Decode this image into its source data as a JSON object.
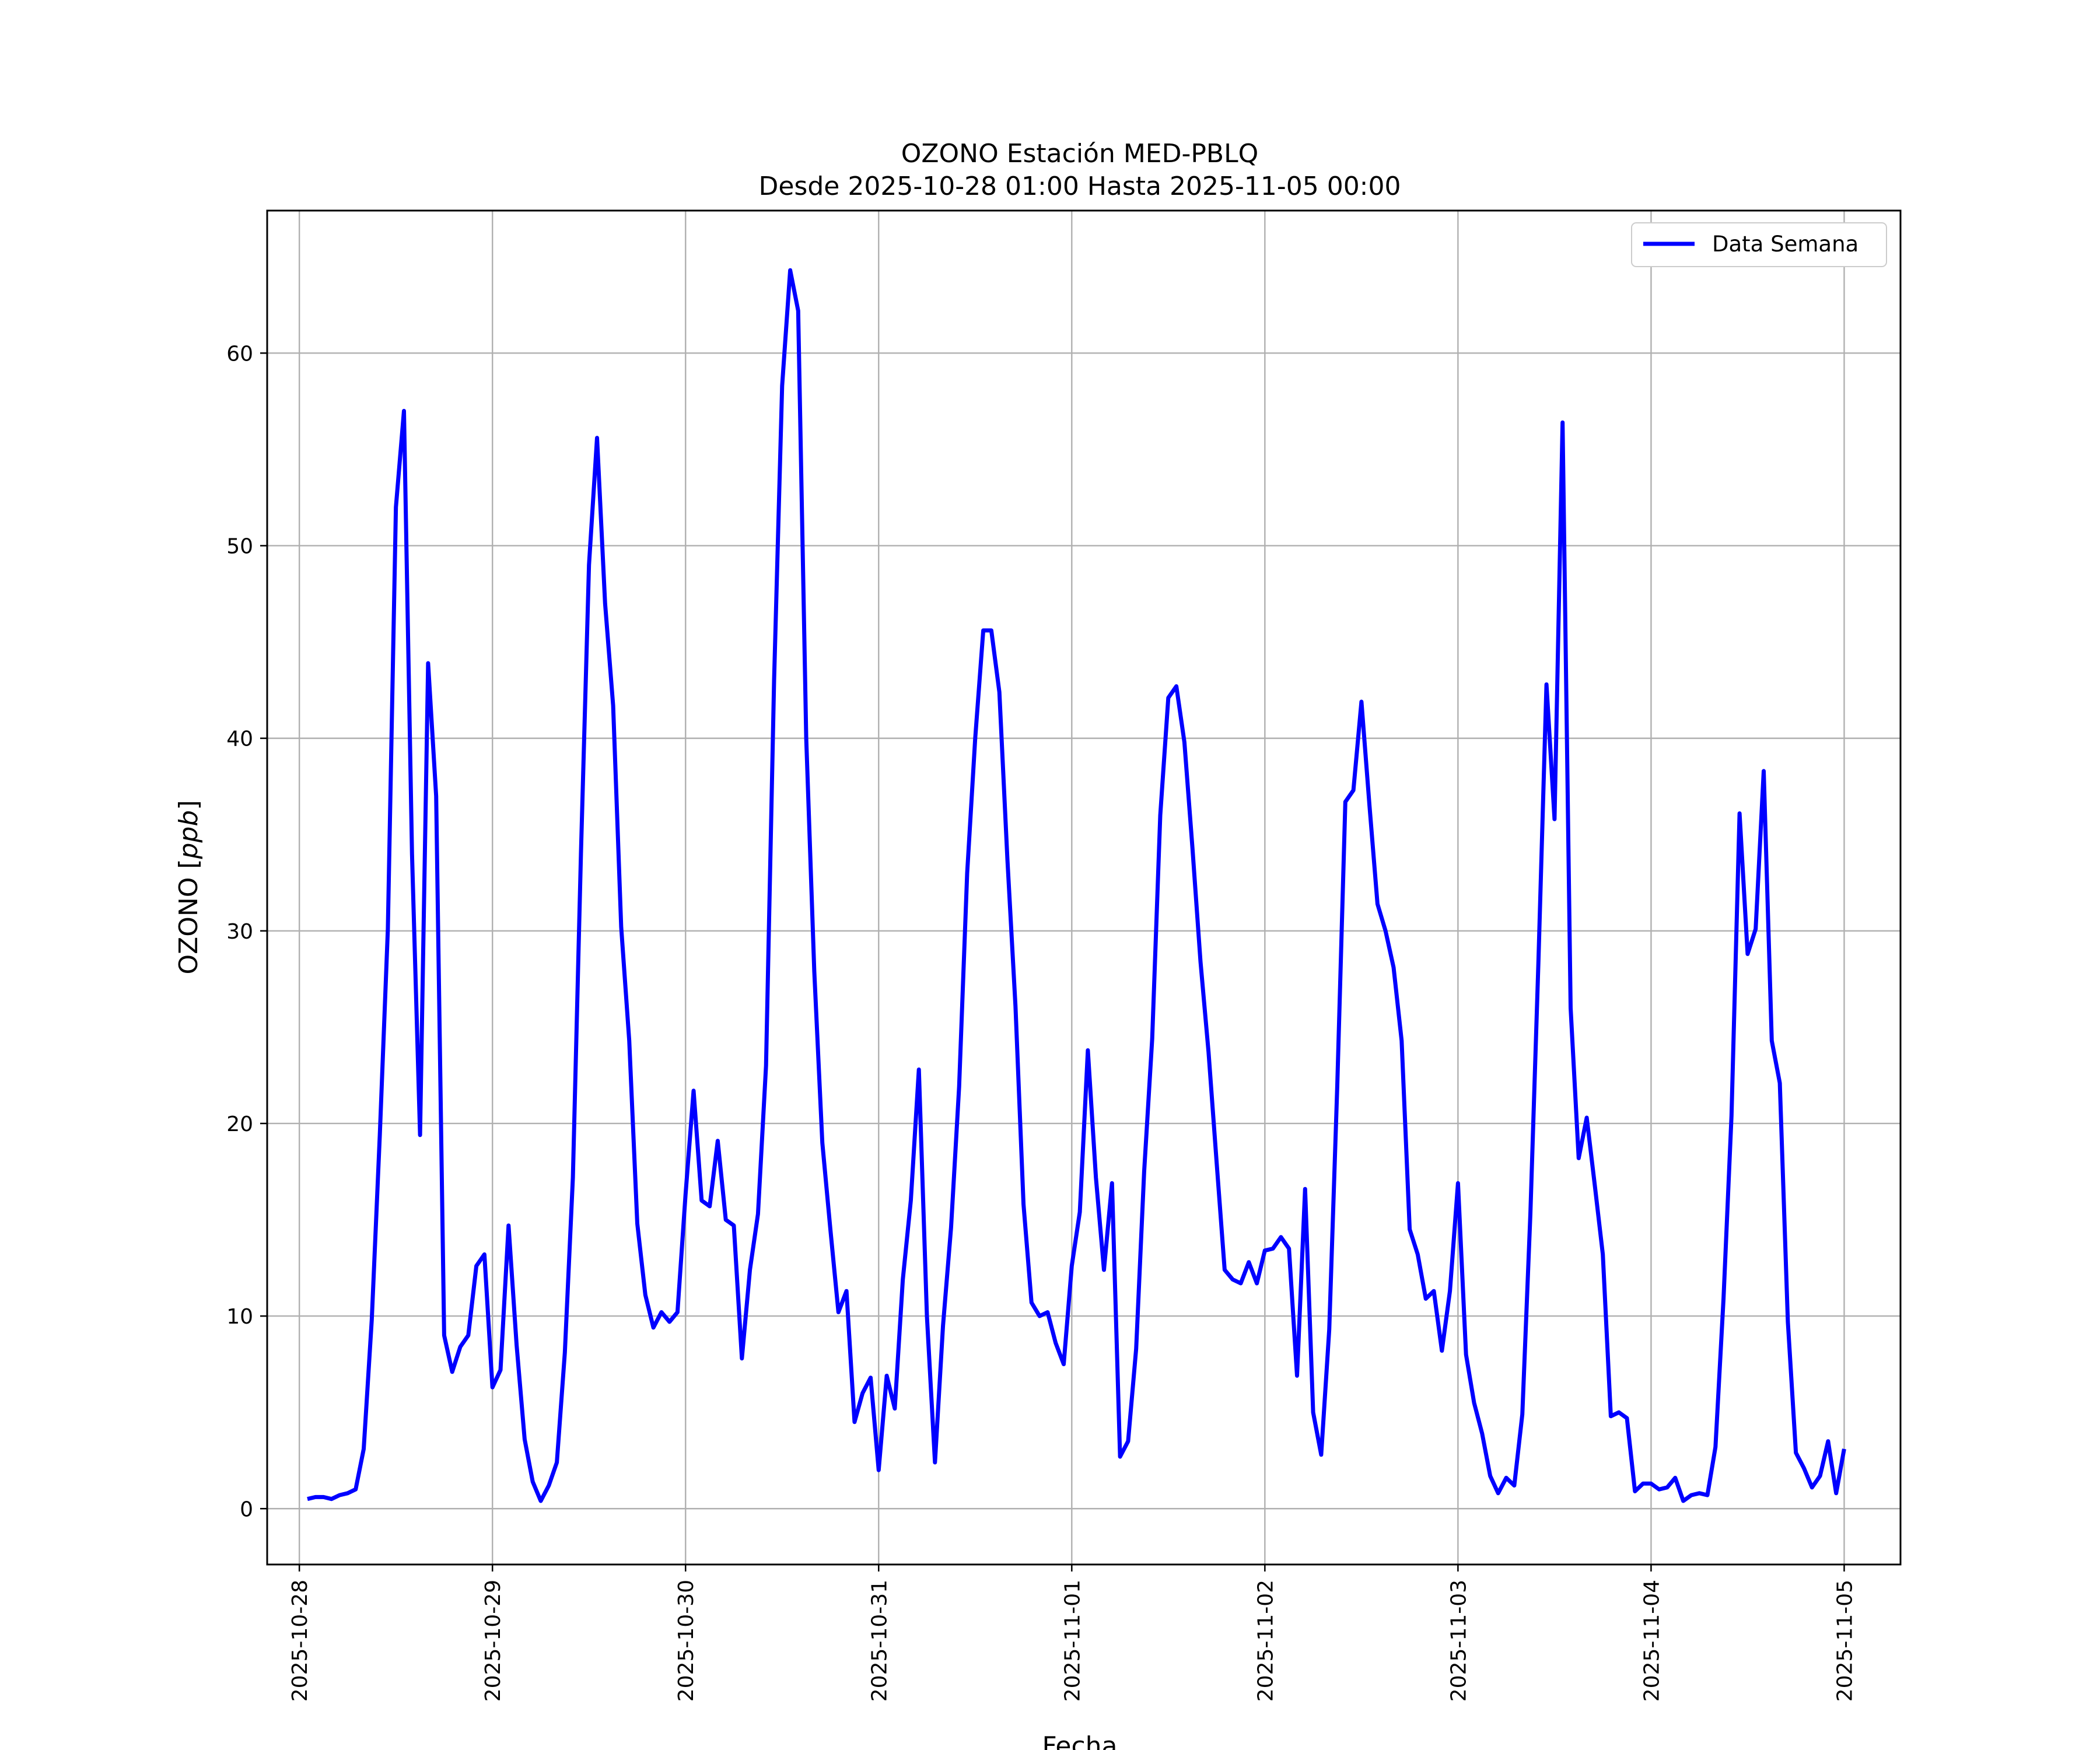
{
  "chart_data": {
    "type": "line",
    "title": "OZONO Estación MED-PBLQ",
    "subtitle": "Desde 2025-10-28 01:00 Hasta 2025-11-05 00:00",
    "xlabel": "Fecha",
    "ylabel": "OZONO [ppb]",
    "ylabel_prefix": "OZONO [",
    "ylabel_unit": "ppb",
    "ylabel_suffix": "]",
    "xlim": [
      "2025-10-27 20:00",
      "2025-11-05 07:00"
    ],
    "ylim": [
      -2.9,
      67.4
    ],
    "x_ticks": [
      "2025-10-28",
      "2025-10-29",
      "2025-10-30",
      "2025-10-31",
      "2025-11-01",
      "2025-11-02",
      "2025-11-03",
      "2025-11-04",
      "2025-11-05"
    ],
    "y_ticks": [
      0,
      10,
      20,
      30,
      40,
      50,
      60
    ],
    "grid": true,
    "legend_position": "top-right",
    "series": [
      {
        "name": "Data Semana",
        "color": "#0000ff",
        "start": "2025-10-28 01:00",
        "step_hours": 1,
        "values": [
          0.5,
          0.6,
          0.6,
          0.5,
          0.7,
          0.8,
          1.0,
          3.1,
          9.8,
          19.4,
          30.1,
          52.0,
          57.0,
          34.0,
          19.4,
          43.9,
          37.0,
          9.0,
          7.1,
          8.4,
          9.0,
          12.6,
          13.2,
          6.3,
          7.2,
          14.7,
          8.5,
          3.6,
          1.4,
          0.4,
          1.2,
          2.4,
          8.1,
          17.2,
          34.0,
          49.0,
          55.6,
          47.0,
          41.7,
          30.2,
          24.3,
          14.8,
          11.1,
          9.4,
          10.2,
          9.7,
          10.2,
          16.3,
          21.7,
          16.0,
          15.7,
          19.1,
          15.0,
          14.7,
          7.8,
          12.4,
          15.3,
          23.0,
          43.0,
          58.3,
          64.3,
          62.2,
          40.0,
          27.9,
          19.0,
          14.5,
          10.2,
          11.3,
          4.5,
          6.0,
          6.8,
          2.0,
          6.9,
          5.2,
          11.9,
          16.0,
          22.8,
          10.0,
          2.4,
          9.5,
          14.6,
          21.9,
          33.0,
          40.0,
          45.6,
          45.6,
          42.4,
          33.7,
          26.1,
          15.8,
          10.7,
          10.0,
          10.2,
          8.6,
          7.5,
          12.6,
          15.4,
          23.8,
          17.2,
          12.4,
          16.9,
          2.7,
          3.5,
          8.3,
          17.5,
          24.4,
          36.0,
          42.1,
          42.7,
          39.8,
          34.3,
          28.4,
          23.7,
          18.0,
          12.4,
          11.9,
          11.7,
          12.8,
          11.7,
          13.4,
          13.5,
          14.1,
          13.5,
          6.9,
          16.6,
          5.0,
          2.8,
          9.3,
          22.0,
          36.7,
          37.3,
          41.9,
          36.5,
          31.4,
          30.0,
          28.1,
          24.3,
          14.5,
          13.2,
          10.9,
          11.3,
          8.2,
          11.3,
          16.9,
          8.0,
          5.5,
          3.9,
          1.7,
          0.8,
          1.6,
          1.2,
          4.9,
          15.3,
          28.4,
          42.8,
          35.8,
          56.4,
          26.0,
          18.2,
          20.3,
          16.8,
          13.2,
          4.8,
          5.0,
          4.7,
          0.9,
          1.3,
          1.3,
          1.0,
          1.1,
          1.6,
          0.4,
          0.7,
          0.8,
          0.7,
          3.2,
          10.9,
          20.4,
          36.1,
          28.8,
          30.1,
          38.3,
          24.3,
          22.1,
          9.7,
          2.9,
          2.1,
          1.1,
          1.7,
          3.5,
          0.8,
          3.1
        ]
      }
    ]
  }
}
